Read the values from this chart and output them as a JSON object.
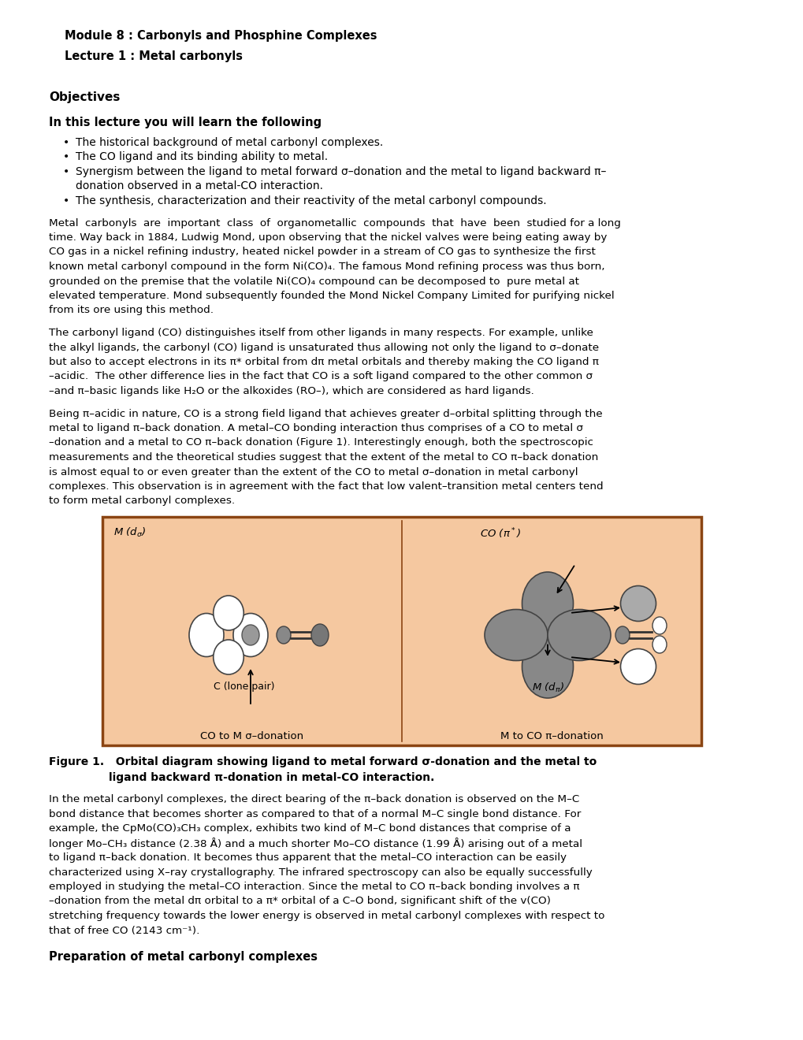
{
  "background_color": "#ffffff",
  "page_width": 10.2,
  "page_height": 13.2,
  "dpi": 100,
  "header1": "Module 8 : Carbonyls and Phosphine Complexes",
  "header2": "Lecture 1 : Metal carbonyls",
  "section1": "Objectives",
  "section2": "In this lecture you will learn the following",
  "bullet1": "The historical background of metal carbonyl complexes.",
  "bullet2": "The CO ligand and its binding ability to metal.",
  "bullet3a": "Synergism between the ligand to metal forward σ–donation and the metal to ligand backward π–",
  "bullet3b": "donation observed in a metal-CO interaction.",
  "bullet4": "The synthesis, characterization and their reactivity of the metal carbonyl compounds.",
  "para1_lines": [
    "Metal  carbonyls  are  important  class  of  organometallic  compounds  that  have  been  studied for a long",
    "time. Way back in 1884, Ludwig Mond, upon observing that the nickel valves were being eating away by",
    "CO gas in a nickel refining industry, heated nickel powder in a stream of CO gas to synthesize the first",
    "known metal carbonyl compound in the form Ni(CO)₄. The famous Mond refining process was thus born,",
    "grounded on the premise that the volatile Ni(CO)₄ compound can be decomposed to  pure metal at",
    "elevated temperature. Mond subsequently founded the Mond Nickel Company Limited for purifying nickel",
    "from its ore using this method."
  ],
  "para2_lines": [
    "The carbonyl ligand (CO) distinguishes itself from other ligands in many respects. For example, unlike",
    "the alkyl ligands, the carbonyl (CO) ligand is unsaturated thus allowing not only the ligand to σ–donate",
    "but also to accept electrons in its π* orbital from dπ metal orbitals and thereby making the CO ligand π",
    "–acidic.  The other difference lies in the fact that CO is a soft ligand compared to the other common σ",
    "–and π–basic ligands like H₂O or the alkoxides (RO–), which are considered as hard ligands."
  ],
  "para3_lines": [
    "Being π–acidic in nature, CO is a strong field ligand that achieves greater d–orbital splitting through the",
    "metal to ligand π–back donation. A metal–CO bonding interaction thus comprises of a CO to metal σ",
    "–donation and a metal to CO π–back donation (Figure 1). Interestingly enough, both the spectroscopic",
    "measurements and the theoretical studies suggest that the extent of the metal to CO π–back donation",
    "is almost equal to or even greater than the extent of the CO to metal σ–donation in metal carbonyl",
    "complexes. This observation is in agreement with the fact that low valent–transition metal centers tend",
    "to form metal carbonyl complexes."
  ],
  "para4_lines": [
    "In the metal carbonyl complexes, the direct bearing of the π–back donation is observed on the M–C",
    "bond distance that becomes shorter as compared to that of a normal M–C single bond distance. For",
    "example, the CpMo(CO)₃CH₃ complex, exhibits two kind of M–C bond distances that comprise of a",
    "longer Mo–CH₃ distance (2.38 Å) and a much shorter Mo–CO distance (1.99 Å) arising out of a metal",
    "to ligand π–back donation. It becomes thus apparent that the metal–CO interaction can be easily",
    "characterized using X–ray crystallography. The infrared spectroscopy can also be equally successfully",
    "employed in studying the metal–CO interaction. Since the metal to CO π–back bonding involves a π",
    "–donation from the metal dπ orbital to a π* orbital of a C–O bond, significant shift of the v(CO)",
    "stretching frequency towards the lower energy is observed in metal carbonyl complexes with respect to",
    "that of free CO (2143 cm⁻¹)."
  ],
  "section3": "Preparation of metal carbonyl complexes",
  "fig_line1": "Figure 1.   Orbital diagram showing ligand to metal forward σ-donation and the metal to",
  "fig_line2": "ligand backward π-donation in metal-CO interaction.",
  "box_facecolor": "#F5C8A0",
  "box_edgecolor": "#8B4513"
}
